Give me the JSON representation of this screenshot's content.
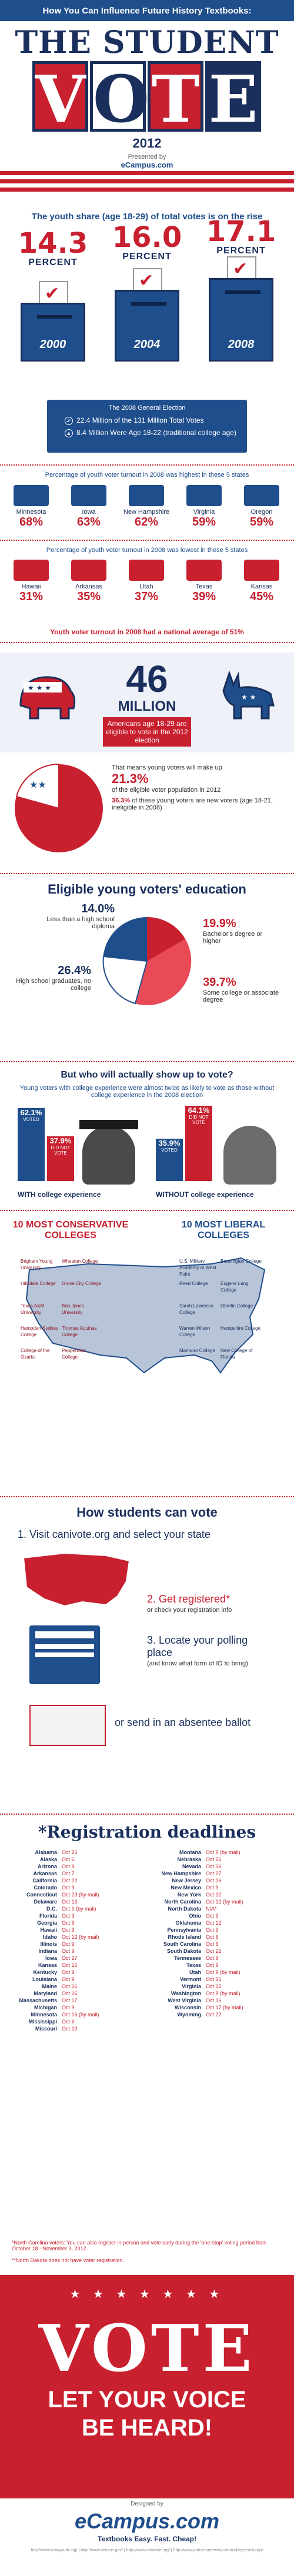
{
  "header": {
    "top_line": "How You Can Influence Future History Textbooks:",
    "title_line1": "THE STUDENT",
    "title_vote": [
      "V",
      "O",
      "T",
      "E"
    ],
    "year": "2012",
    "presented_by": "Presented by",
    "brand": "eCampus.com"
  },
  "youth_share": {
    "title": "The youth share (age 18-29) of total votes is on the rise",
    "items": [
      {
        "pct": "14.3",
        "label": "PERCENT",
        "year": "2000"
      },
      {
        "pct": "16.0",
        "label": "PERCENT",
        "year": "2004"
      },
      {
        "pct": "17.1",
        "label": "PERCENT",
        "year": "2008"
      }
    ]
  },
  "election_2008": {
    "heading": "The 2008 General Election",
    "line1": "22.4 Million of the 131 Million Total Votes",
    "line2": "8.4 Million Were Age 18-22 (traditional college age)"
  },
  "highest_states": {
    "title": "Percentage of youth voter turnout in 2008 was highest in these 5 states",
    "items": [
      {
        "name": "Minnesota",
        "pct": "68%"
      },
      {
        "name": "Iowa",
        "pct": "63%"
      },
      {
        "name": "New Hampshire",
        "pct": "62%"
      },
      {
        "name": "Virginia",
        "pct": "59%"
      },
      {
        "name": "Oregon",
        "pct": "59%"
      }
    ]
  },
  "lowest_states": {
    "title": "Percentage of youth voter turnout in 2008 was lowest in these 5 states",
    "items": [
      {
        "name": "Hawaii",
        "pct": "31%"
      },
      {
        "name": "Arkansas",
        "pct": "35%"
      },
      {
        "name": "Utah",
        "pct": "37%"
      },
      {
        "name": "Texas",
        "pct": "39%"
      },
      {
        "name": "Kansas",
        "pct": "45%"
      }
    ]
  },
  "national_avg": "Youth voter turnout in 2008 had a national average of 51%",
  "million": {
    "number": "46",
    "word": "MILLION",
    "desc": "Americans age 18-29 are eligible to vote in the 2012 election"
  },
  "pie": {
    "intro": "That means young voters will make up",
    "pct1": "21.3%",
    "desc1": "of the eligible voter population in 2012",
    "pct2": "36.3%",
    "desc2": "of these young voters are new voters (age 18-21, ineligible in 2008)"
  },
  "education": {
    "title": "Eligible young voters' education",
    "items": [
      {
        "pct": "14.0%",
        "desc": "Less than a high school diploma"
      },
      {
        "pct": "19.9%",
        "desc": "Bachelor's degree or higher"
      },
      {
        "pct": "26.4%",
        "desc": "High school graduates, no college"
      },
      {
        "pct": "39.7%",
        "desc": "Some college or associate degree"
      }
    ]
  },
  "who": {
    "title": "But who will actually show up to vote?",
    "sub": "Young voters with college experience were almost twice as likely to vote as those without college experience in the 2008 election",
    "with": {
      "voted": "62.1%",
      "voted_lbl": "VOTED",
      "not": "37.9%",
      "not_lbl": "DID NOT VOTE",
      "label": "WITH college experience"
    },
    "without": {
      "voted": "35.9%",
      "voted_lbl": "VOTED",
      "not": "64.1%",
      "not_lbl": "DID NOT VOTE",
      "label": "WITHOUT college experience"
    }
  },
  "colleges": {
    "cons_title": "10 MOST CONSERVATIVE COLLEGES",
    "lib_title": "10 MOST LIBERAL COLLEGES",
    "cons": [
      "Brigham Young University",
      "Wheaton College",
      "Hillsdale College",
      "Grove City College",
      "Texas A&M University",
      "Bob Jones University",
      "Hampden-Sydney College",
      "Thomas Aquinas College",
      "College of the Ozarks",
      "Pepperdine College"
    ],
    "lib": [
      "U.S. Military Academy at West Point",
      "Bennington College",
      "Reed College",
      "Eugene Lang College",
      "Sarah Lawrence College",
      "Oberlin College",
      "Warren Wilson College",
      "Hampshire College",
      "Marlboro College",
      "New College of Florida"
    ]
  },
  "how": {
    "title": "How students can vote",
    "step1": "1. Visit canivote.org and select your state",
    "step2": "2. Get registered*",
    "step2_note": "or check your registration info",
    "step3": "3. Locate your polling place",
    "step3_note": "(and know what form of ID to bring)",
    "or_line": "or send in an absentee ballot"
  },
  "registration": {
    "title": "*Registration deadlines",
    "left": [
      [
        "Alabama",
        "Oct 26"
      ],
      [
        "Alaska",
        "Oct 6"
      ],
      [
        "Arizona",
        "Oct 9"
      ],
      [
        "Arkansas",
        "Oct 7"
      ],
      [
        "California",
        "Oct 22"
      ],
      [
        "Colorado",
        "Oct 9"
      ],
      [
        "Connecticut",
        "Oct 23 (by mail)"
      ],
      [
        "Delaware",
        "Oct 13"
      ],
      [
        "D.C.",
        "Oct 9 (by mail)"
      ],
      [
        "Florida",
        "Oct 9"
      ],
      [
        "Georgia",
        "Oct 9"
      ],
      [
        "Hawaii",
        "Oct 9"
      ],
      [
        "Idaho",
        "Oct 12 (by mail)"
      ],
      [
        "Illinois",
        "Oct 9"
      ],
      [
        "Indiana",
        "Oct 9"
      ],
      [
        "Iowa",
        "Oct 27"
      ],
      [
        "Kansas",
        "Oct 16"
      ],
      [
        "Kentucky",
        "Oct 9"
      ],
      [
        "Louisiana",
        "Oct 9"
      ],
      [
        "Maine",
        "Oct 16"
      ],
      [
        "Maryland",
        "Oct 16"
      ],
      [
        "Massachusetts",
        "Oct 17"
      ],
      [
        "Michigan",
        "Oct 9"
      ],
      [
        "Minnesota",
        "Oct 16 (by mail)"
      ],
      [
        "Mississippi",
        "Oct 6"
      ],
      [
        "Missouri",
        "Oct 10"
      ]
    ],
    "right": [
      [
        "Montana",
        "Oct 9 (by mail)"
      ],
      [
        "Nebraska",
        "Oct 26"
      ],
      [
        "Nevada",
        "Oct 16"
      ],
      [
        "New Hampshire",
        "Oct 27"
      ],
      [
        "New Jersey",
        "Oct 16"
      ],
      [
        "New Mexico",
        "Oct 9"
      ],
      [
        "New York",
        "Oct 12"
      ],
      [
        "North Carolina",
        "Oct 12 (by mail)"
      ],
      [
        "North Dakota",
        "N/A*"
      ],
      [
        "Ohio",
        "Oct 9"
      ],
      [
        "Oklahoma",
        "Oct 12"
      ],
      [
        "Pennsylvania",
        "Oct 9"
      ],
      [
        "Rhode Island",
        "Oct 6"
      ],
      [
        "South Carolina",
        "Oct 6"
      ],
      [
        "South Dakota",
        "Oct 22"
      ],
      [
        "Tennessee",
        "Oct 9"
      ],
      [
        "Texas",
        "Oct 9"
      ],
      [
        "Utah",
        "Oct 9 (by mail)"
      ],
      [
        "Vermont",
        "Oct 31"
      ],
      [
        "Virginia",
        "Oct 15"
      ],
      [
        "Washington",
        "Oct 9 (by mail)"
      ],
      [
        "West Virginia",
        "Oct 16"
      ],
      [
        "Wisconsin",
        "Oct 17 (by mail)"
      ],
      [
        "Wyoming",
        "Oct 22"
      ]
    ],
    "note1": "*North Carolina voters: You can also register in person and vote early during the 'one-stop' voting period from October 18 - November 3, 2012.",
    "note2": "**North Dakota does not have voter registration."
  },
  "final": {
    "vote": "VOTE",
    "line1": "LET YOUR VOICE",
    "line2": "BE HEARD!"
  },
  "footer": {
    "designed": "Designed by",
    "brand": "eCampus.com",
    "tagline": "Textbooks   Easy. Fast. Cheap!",
    "sources": "http://www.civicyouth.org/ | http://www.census.gov/ | http://www.canivote.org/ | http://www.princetonreview.com/college-rankings/"
  }
}
